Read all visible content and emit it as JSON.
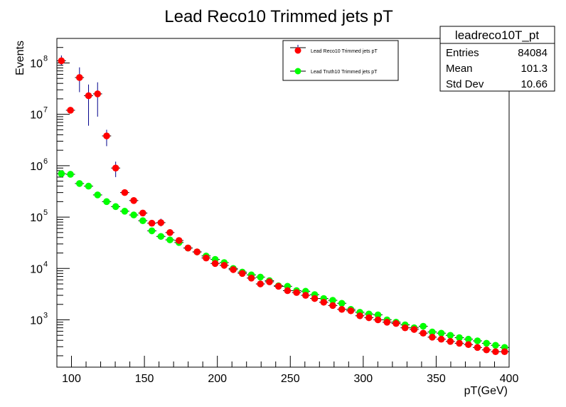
{
  "chart_data": {
    "type": "scatter",
    "title": "Lead Reco10 Trimmed jets pT",
    "xlabel": "pT(GeV)",
    "ylabel": "Events",
    "xlim": [
      90,
      400
    ],
    "ylim": [
      120,
      300000000
    ],
    "yscale": "log",
    "grid": false,
    "x_ticks": [
      100,
      150,
      200,
      250,
      300,
      350,
      400
    ],
    "y_ticks": [
      {
        "value": 1000,
        "mantissa": "10",
        "exp": "3"
      },
      {
        "value": 10000,
        "mantissa": "10",
        "exp": "4"
      },
      {
        "value": 100000,
        "mantissa": "10",
        "exp": "5"
      },
      {
        "value": 1000000,
        "mantissa": "10",
        "exp": "6"
      },
      {
        "value": 10000000,
        "mantissa": "10",
        "exp": "7"
      },
      {
        "value": 100000000,
        "mantissa": "10",
        "exp": "8"
      }
    ],
    "legend_position": "top-center",
    "stats_box": {
      "title": "leadreco10T_pt",
      "rows": [
        {
          "label": "Entries",
          "value": "84084"
        },
        {
          "label": "Mean",
          "value": "101.3"
        },
        {
          "label": "Std Dev",
          "value": "10.66"
        }
      ]
    },
    "series": [
      {
        "name": "Lead Reco10 Trimmed jets pT",
        "color": "#ff0000",
        "x": [
          93.1,
          99.3,
          105.5,
          111.7,
          117.9,
          124.1,
          130.3,
          136.5,
          142.7,
          148.9,
          155.1,
          161.3,
          167.5,
          173.7,
          179.9,
          186.1,
          192.3,
          198.5,
          204.7,
          210.9,
          217.1,
          223.3,
          229.5,
          235.7,
          241.9,
          248.1,
          254.3,
          260.5,
          266.7,
          272.9,
          279.1,
          285.3,
          291.5,
          297.7,
          303.9,
          310.1,
          316.3,
          322.5,
          328.7,
          334.9,
          341.1,
          347.3,
          353.5,
          359.7,
          365.9,
          372.1,
          378.3,
          384.5,
          390.7,
          396.9
        ],
        "y": [
          110000000,
          12000000,
          52000000,
          23000000,
          25000000,
          3800000,
          900000,
          300000,
          210000,
          120000,
          76000,
          78000,
          50000,
          35000,
          25000,
          21000,
          16000,
          12500,
          11500,
          9500,
          8000,
          6500,
          5000,
          5500,
          4500,
          3700,
          3400,
          3000,
          2600,
          2200,
          1900,
          1600,
          1500,
          1200,
          1100,
          1000,
          900,
          850,
          700,
          650,
          550,
          460,
          420,
          380,
          350,
          330,
          290,
          260,
          240,
          240
        ],
        "yerr_low": [
          20000000,
          1000000,
          25000000,
          17000000,
          16000000,
          1400000,
          300000,
          0,
          0,
          0,
          0,
          12000,
          0,
          0,
          0,
          0,
          0,
          0,
          0,
          0,
          0,
          0,
          0,
          0,
          0,
          0,
          0,
          0,
          0,
          0,
          0,
          0,
          0,
          0,
          0,
          0,
          0,
          0,
          0,
          0,
          0,
          0,
          0,
          0,
          0,
          0,
          0,
          0,
          0,
          0
        ],
        "yerr_high": [
          30000000,
          1500000,
          30000000,
          15000000,
          17000000,
          1200000,
          300000,
          0,
          0,
          0,
          0,
          15000,
          0,
          0,
          0,
          0,
          0,
          0,
          0,
          0,
          0,
          0,
          0,
          0,
          0,
          0,
          0,
          0,
          0,
          0,
          0,
          0,
          0,
          0,
          0,
          0,
          0,
          0,
          0,
          0,
          0,
          0,
          0,
          0,
          0,
          0,
          0,
          0,
          0,
          0
        ]
      },
      {
        "name": "Lead Truth10 Trimmed jets pT",
        "color": "#00ff00",
        "x": [
          93.1,
          99.3,
          105.5,
          111.7,
          117.9,
          124.1,
          130.3,
          136.5,
          142.7,
          148.9,
          155.1,
          161.3,
          167.5,
          173.7,
          179.9,
          186.1,
          192.3,
          198.5,
          204.7,
          210.9,
          217.1,
          223.3,
          229.5,
          235.7,
          241.9,
          248.1,
          254.3,
          260.5,
          266.7,
          272.9,
          279.1,
          285.3,
          291.5,
          297.7,
          303.9,
          310.1,
          316.3,
          322.5,
          328.7,
          334.9,
          341.1,
          347.3,
          353.5,
          359.7,
          365.9,
          372.1,
          378.3,
          384.5,
          390.7,
          396.9
        ],
        "y": [
          700000,
          680000,
          450000,
          400000,
          270000,
          200000,
          160000,
          130000,
          110000,
          85000,
          54000,
          42000,
          36000,
          32000,
          25000,
          21000,
          17500,
          15000,
          13000,
          10000,
          8500,
          7500,
          6800,
          5800,
          4600,
          4500,
          3700,
          3600,
          3100,
          2600,
          2400,
          2100,
          1600,
          1400,
          1300,
          1250,
          1000,
          900,
          800,
          700,
          750,
          580,
          550,
          500,
          450,
          420,
          390,
          350,
          320,
          290
        ],
        "yerr_low": [],
        "yerr_high": []
      }
    ]
  }
}
